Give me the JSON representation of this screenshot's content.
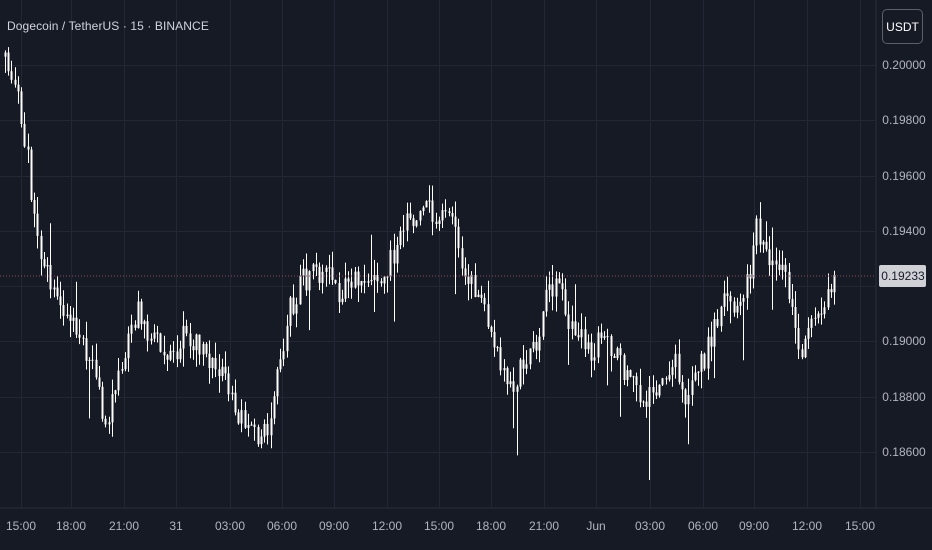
{
  "symbol": {
    "title": "Dogecoin / TetherUS · 15 · BINANCE"
  },
  "currency_button": {
    "label": "USDT"
  },
  "colors": {
    "background": "#161a25",
    "grid": "#232733",
    "candle": "#ffffff",
    "last_price_line": "#8c4b5a",
    "last_price_badge_bg": "#cfd1d6",
    "last_price_badge_text": "#161a25",
    "axis_text": "#b2b5be"
  },
  "chart_data": {
    "type": "candlestick",
    "symbol": "DOGE/USDT",
    "interval": "15",
    "exchange": "BINANCE",
    "y_axis": {
      "ticks": [
        "0.20000",
        "0.19800",
        "0.19600",
        "0.19400",
        "0.19200",
        "0.19000",
        "0.18800",
        "0.18600"
      ],
      "range": [
        0.1845,
        0.2013
      ]
    },
    "x_axis": {
      "ticks": [
        "15:00",
        "18:00",
        "21:00",
        "31",
        "03:00",
        "06:00",
        "09:00",
        "12:00",
        "15:00",
        "18:00",
        "21:00",
        "Jun",
        "03:00",
        "06:00",
        "09:00",
        "12:00",
        "15:00"
      ]
    },
    "last_price": "0.19233",
    "close_path": [
      [
        0,
        0.2001
      ],
      [
        3,
        0.1995
      ],
      [
        6,
        0.1975
      ],
      [
        10,
        0.1935
      ],
      [
        15,
        0.192
      ],
      [
        19,
        0.191
      ],
      [
        23,
        0.1905
      ],
      [
        27,
        0.189
      ],
      [
        31,
        0.187
      ],
      [
        34,
        0.188
      ],
      [
        38,
        0.19
      ],
      [
        41,
        0.1912
      ],
      [
        44,
        0.1902
      ],
      [
        48,
        0.19
      ],
      [
        52,
        0.1894
      ],
      [
        56,
        0.1904
      ],
      [
        60,
        0.1898
      ],
      [
        64,
        0.189
      ],
      [
        68,
        0.1886
      ],
      [
        72,
        0.1874
      ],
      [
        76,
        0.1868
      ],
      [
        79,
        0.1864
      ],
      [
        82,
        0.187
      ],
      [
        85,
        0.1894
      ],
      [
        88,
        0.1912
      ],
      [
        92,
        0.1922
      ],
      [
        96,
        0.1924
      ],
      [
        100,
        0.193
      ],
      [
        103,
        0.1918
      ],
      [
        107,
        0.1922
      ],
      [
        111,
        0.1924
      ],
      [
        115,
        0.192
      ],
      [
        118,
        0.1926
      ],
      [
        121,
        0.1934
      ],
      [
        124,
        0.1944
      ],
      [
        127,
        0.1946
      ],
      [
        131,
        0.1948
      ],
      [
        134,
        0.1946
      ],
      [
        138,
        0.1942
      ],
      [
        141,
        0.193
      ],
      [
        144,
        0.192
      ],
      [
        148,
        0.1912
      ],
      [
        151,
        0.1902
      ],
      [
        154,
        0.1888
      ],
      [
        157,
        0.1885
      ],
      [
        160,
        0.1893
      ],
      [
        164,
        0.19
      ],
      [
        167,
        0.1916
      ],
      [
        171,
        0.192
      ],
      [
        174,
        0.1906
      ],
      [
        177,
        0.1902
      ],
      [
        180,
        0.1896
      ],
      [
        184,
        0.19
      ],
      [
        187,
        0.1897
      ],
      [
        191,
        0.189
      ],
      [
        194,
        0.1883
      ],
      [
        197,
        0.1874
      ],
      [
        200,
        0.1882
      ],
      [
        203,
        0.1888
      ],
      [
        207,
        0.1894
      ],
      [
        210,
        0.188
      ],
      [
        213,
        0.1886
      ],
      [
        216,
        0.1894
      ],
      [
        220,
        0.1908
      ],
      [
        223,
        0.1918
      ],
      [
        227,
        0.1911
      ],
      [
        229,
        0.192
      ],
      [
        232,
        0.194
      ],
      [
        235,
        0.1932
      ],
      [
        238,
        0.1926
      ],
      [
        241,
        0.1922
      ],
      [
        244,
        0.1906
      ],
      [
        246,
        0.1897
      ],
      [
        249,
        0.1908
      ],
      [
        252,
        0.1912
      ],
      [
        255,
        0.1918
      ],
      [
        256,
        0.1923
      ]
    ]
  },
  "meta": {
    "bars_count": 257
  }
}
